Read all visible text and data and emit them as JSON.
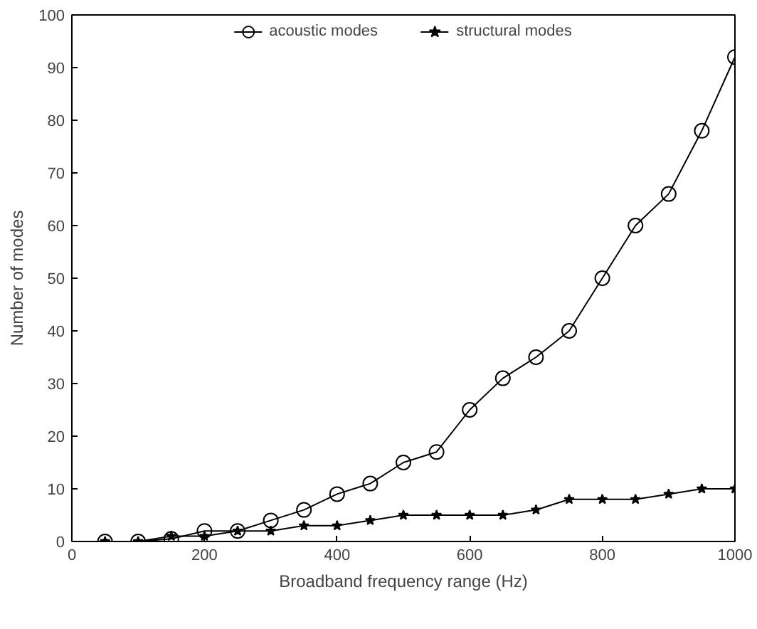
{
  "chart_data": {
    "type": "line",
    "xlabel": "Broadband frequency range (Hz)",
    "ylabel": "Number of modes",
    "x": [
      50,
      100,
      150,
      200,
      250,
      300,
      350,
      400,
      450,
      500,
      550,
      600,
      650,
      700,
      750,
      800,
      850,
      900,
      950,
      1000
    ],
    "series": [
      {
        "name": "acoustic modes",
        "color": "#000000",
        "marker": "circle",
        "values": [
          0,
          0,
          0.5,
          2,
          2,
          4,
          6,
          9,
          11,
          15,
          17,
          25,
          31,
          35,
          40,
          50,
          60,
          66,
          78,
          92
        ]
      },
      {
        "name": "structural modes",
        "color": "#000000",
        "marker": "star",
        "values": [
          0,
          0,
          1,
          1,
          2,
          2,
          3,
          3,
          4,
          5,
          5,
          5,
          5,
          6,
          8,
          8,
          8,
          9,
          10,
          10
        ]
      }
    ],
    "xlim": [
      0,
      1000
    ],
    "xticks": [
      0,
      200,
      400,
      600,
      800,
      1000
    ],
    "ylim": [
      0,
      100
    ],
    "yticks": [
      0,
      10,
      20,
      30,
      40,
      50,
      60,
      70,
      80,
      90,
      100
    ],
    "grid": false,
    "legend": "top",
    "line_style": "solid"
  }
}
